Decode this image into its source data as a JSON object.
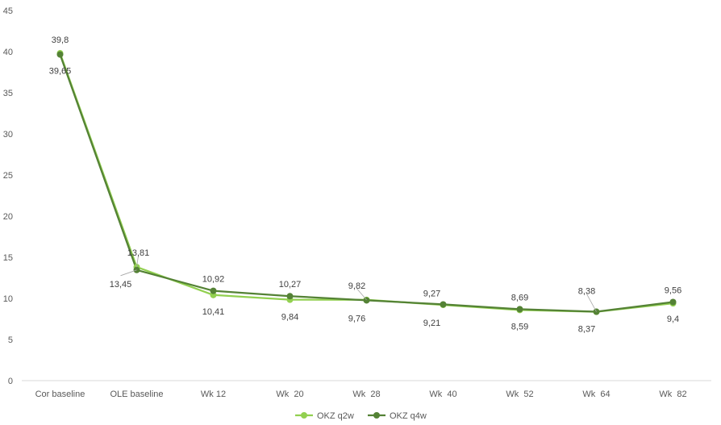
{
  "chart_data": {
    "type": "line",
    "title": "",
    "xlabel": "",
    "ylabel": "",
    "categories": [
      "Cor baseline",
      "OLE baseline",
      "Wk 12",
      "Wk  20",
      "Wk  28",
      "Wk  40",
      "Wk  52",
      "Wk  64",
      "Wk  82"
    ],
    "ylim": [
      0,
      45
    ],
    "yticks": [
      0,
      5,
      10,
      15,
      20,
      25,
      30,
      35,
      40,
      45
    ],
    "grid": false,
    "legend_position": "bottom",
    "series": [
      {
        "name": "OKZ q2w",
        "color": "#92d050",
        "values": [
          39.8,
          13.81,
          10.41,
          9.84,
          9.82,
          9.21,
          8.59,
          8.37,
          9.4
        ],
        "labels": [
          "39,8",
          "13,81",
          "10,41",
          "9,84",
          "9,82",
          "9,21",
          "8,59",
          "8,37",
          "9,4"
        ]
      },
      {
        "name": "OKZ q4w",
        "color": "#548235",
        "values": [
          39.65,
          13.45,
          10.92,
          10.27,
          9.76,
          9.27,
          8.69,
          8.38,
          9.56
        ],
        "labels": [
          "39,65",
          "13,45",
          "10,92",
          "10,27",
          "9,76",
          "9,27",
          "8,69",
          "8,38",
          "9,56"
        ]
      }
    ]
  }
}
